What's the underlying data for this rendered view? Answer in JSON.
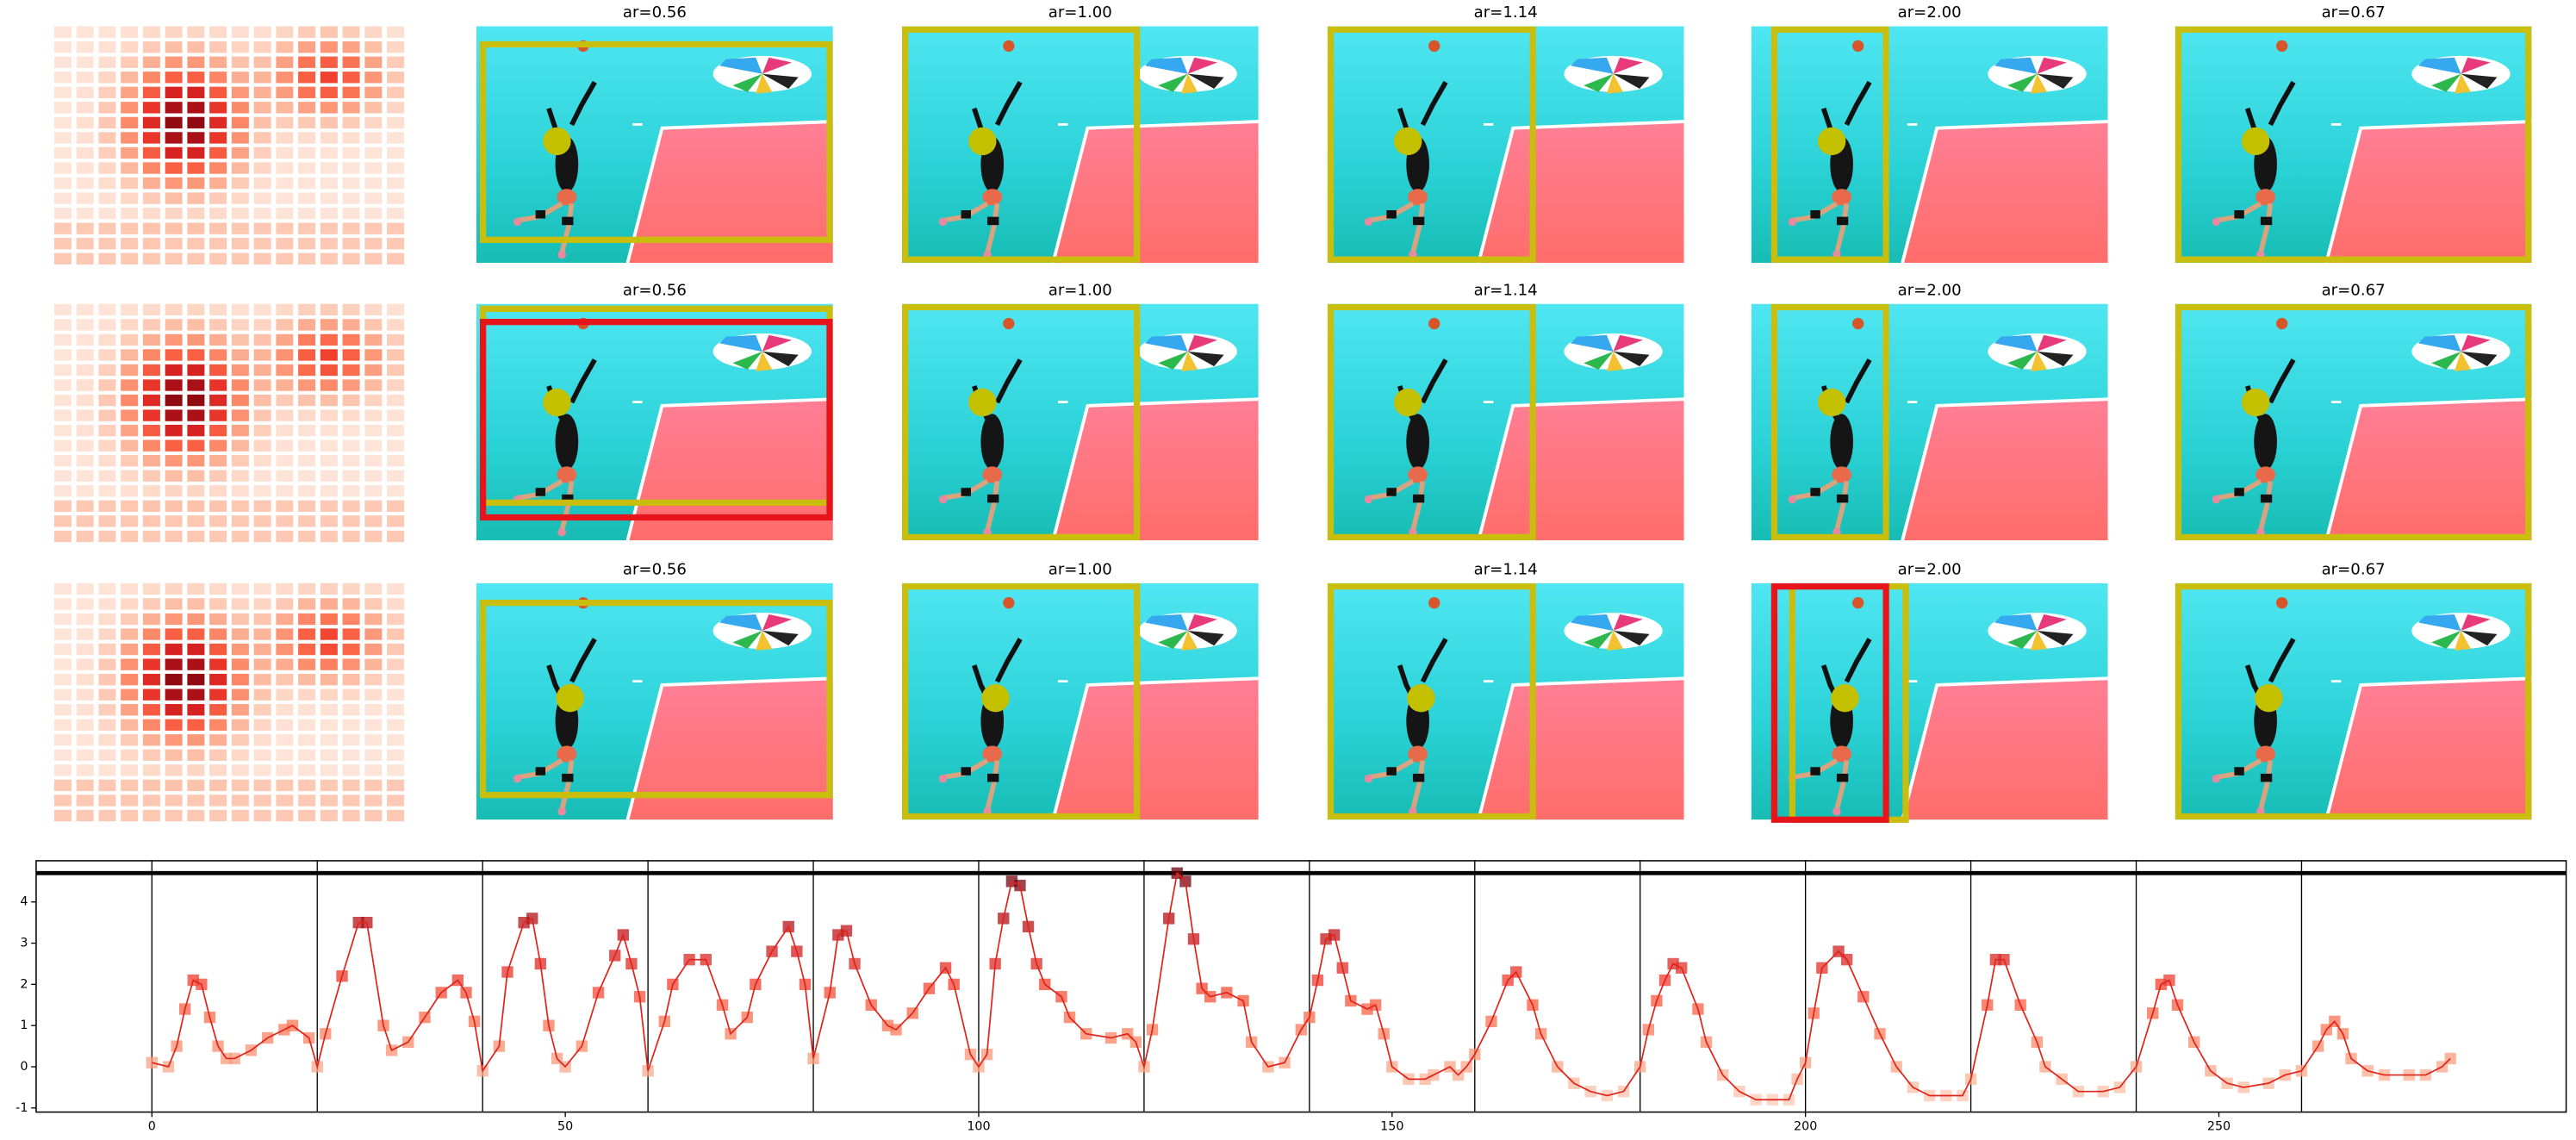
{
  "panels": {
    "titles": [
      [
        "ar=0.56",
        "ar=1.00",
        "ar=1.14",
        "ar=2.00",
        "ar=0.67"
      ],
      [
        "ar=0.56",
        "ar=1.00",
        "ar=1.14",
        "ar=2.00",
        "ar=0.67"
      ],
      [
        "ar=0.56",
        "ar=1.00",
        "ar=1.14",
        "ar=2.00",
        "ar=0.67"
      ]
    ]
  },
  "chart_data": {
    "type": "line",
    "color": "#e0241b",
    "cmap": "Reds",
    "x": [
      0,
      2,
      3,
      4,
      5,
      6,
      7,
      8,
      9,
      10,
      12,
      14,
      16,
      17,
      19,
      20,
      21,
      23,
      25,
      26,
      28,
      29,
      31,
      33,
      35,
      37,
      38,
      39,
      40,
      42,
      43,
      45,
      46,
      47,
      48,
      49,
      50,
      52,
      54,
      56,
      57,
      58,
      59,
      60,
      62,
      63,
      65,
      67,
      69,
      70,
      72,
      73,
      75,
      77,
      78,
      79,
      80,
      82,
      83,
      84,
      85,
      87,
      89,
      90,
      92,
      94,
      96,
      97,
      99,
      100,
      101,
      102,
      103,
      104,
      105,
      106,
      107,
      108,
      110,
      111,
      113,
      116,
      118,
      119,
      120,
      121,
      123,
      124,
      125,
      126,
      127,
      128,
      130,
      132,
      133,
      135,
      137,
      139,
      140,
      141,
      142,
      143,
      144,
      145,
      147,
      148,
      149,
      150,
      152,
      154,
      155,
      157,
      158,
      159,
      160,
      162,
      164,
      165,
      167,
      168,
      170,
      172,
      174,
      176,
      178,
      180,
      181,
      182,
      183,
      184,
      185,
      187,
      188,
      190,
      192,
      194,
      196,
      198,
      199,
      200,
      201,
      202,
      204,
      205,
      207,
      209,
      211,
      213,
      215,
      217,
      219,
      220,
      222,
      223,
      224,
      226,
      228,
      229,
      231,
      233,
      236,
      238,
      240,
      242,
      243,
      244,
      245,
      247,
      249,
      251,
      253,
      256,
      258,
      260,
      262,
      263,
      264,
      265,
      266,
      268,
      270,
      273,
      275,
      277,
      278
    ],
    "values": [
      0.1,
      0.0,
      0.5,
      1.4,
      2.1,
      2.0,
      1.2,
      0.5,
      0.2,
      0.2,
      0.4,
      0.7,
      0.9,
      1.0,
      0.7,
      0.0,
      0.8,
      2.2,
      3.5,
      3.5,
      1.0,
      0.4,
      0.6,
      1.2,
      1.8,
      2.1,
      1.8,
      1.1,
      -0.1,
      0.5,
      2.3,
      3.5,
      3.6,
      2.5,
      1.0,
      0.2,
      0.0,
      0.5,
      1.8,
      2.7,
      3.2,
      2.5,
      1.7,
      -0.1,
      1.1,
      2.0,
      2.6,
      2.6,
      1.5,
      0.8,
      1.2,
      2.0,
      2.8,
      3.4,
      2.8,
      2.0,
      0.2,
      1.8,
      3.2,
      3.3,
      2.5,
      1.5,
      1.0,
      0.9,
      1.3,
      1.9,
      2.4,
      2.0,
      0.3,
      0.0,
      0.3,
      2.5,
      3.6,
      4.5,
      4.4,
      3.4,
      2.5,
      2.0,
      1.7,
      1.2,
      0.8,
      0.7,
      0.8,
      0.6,
      0.0,
      0.9,
      3.6,
      4.7,
      4.5,
      3.1,
      1.9,
      1.7,
      1.8,
      1.6,
      0.6,
      0.0,
      0.1,
      0.9,
      1.2,
      2.1,
      3.1,
      3.2,
      2.4,
      1.6,
      1.4,
      1.5,
      0.8,
      0.0,
      -0.3,
      -0.3,
      -0.2,
      0.0,
      -0.2,
      0.0,
      0.3,
      1.1,
      2.1,
      2.3,
      1.5,
      0.8,
      0.0,
      -0.4,
      -0.6,
      -0.7,
      -0.6,
      0.0,
      0.9,
      1.6,
      2.1,
      2.5,
      2.4,
      1.4,
      0.6,
      -0.2,
      -0.6,
      -0.8,
      -0.8,
      -0.8,
      -0.3,
      0.1,
      1.3,
      2.4,
      2.8,
      2.6,
      1.7,
      0.8,
      0.0,
      -0.5,
      -0.7,
      -0.7,
      -0.7,
      -0.3,
      1.5,
      2.6,
      2.6,
      1.5,
      0.6,
      0.0,
      -0.3,
      -0.6,
      -0.6,
      -0.5,
      0.0,
      1.3,
      2.0,
      2.1,
      1.5,
      0.6,
      -0.1,
      -0.4,
      -0.5,
      -0.4,
      -0.2,
      -0.1,
      0.5,
      0.9,
      1.1,
      0.8,
      0.2,
      -0.1,
      -0.2,
      -0.2,
      -0.2,
      0.0,
      0.2
    ],
    "xlim": [
      -14,
      292
    ],
    "ylim": [
      -1.1,
      5.0
    ],
    "xticks": [
      0,
      50,
      100,
      150,
      200,
      250
    ],
    "yticks": [
      -1,
      0,
      1,
      2,
      3,
      4
    ],
    "vlines": [
      0,
      20,
      40,
      60,
      80,
      100,
      120,
      140,
      160,
      180,
      200,
      220,
      240,
      260
    ],
    "hline": 4.7
  }
}
